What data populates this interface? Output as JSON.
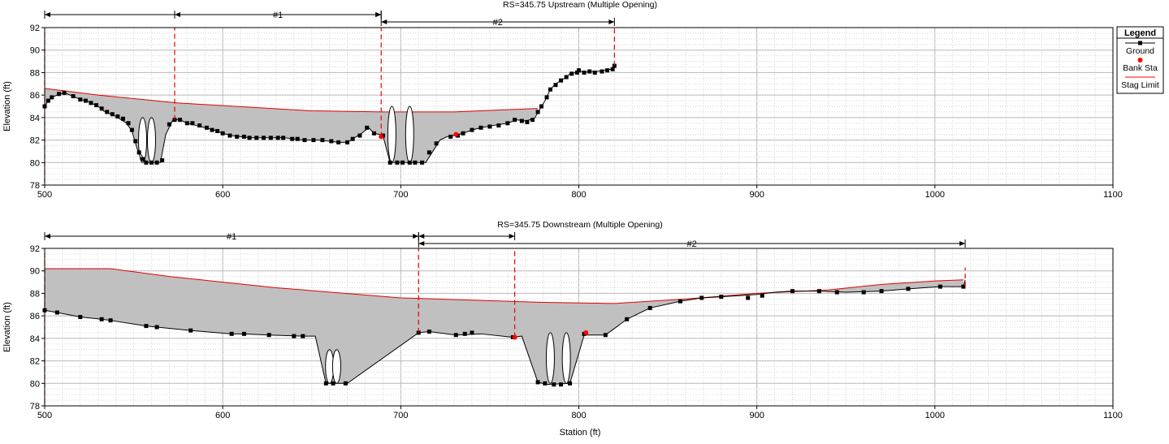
{
  "legend": {
    "title": "Legend",
    "items": [
      {
        "label": "Ground",
        "color": "#000000",
        "marker": "square-line"
      },
      {
        "label": "Bank Sta",
        "color": "#ff0000",
        "marker": "diamond"
      },
      {
        "label": "Stag Limit",
        "color": "#ff0000",
        "marker": "line"
      }
    ]
  },
  "chart_data": [
    {
      "type": "area",
      "title": "RS=345.75  Upstream  (Multiple Opening)",
      "xlabel": "",
      "ylabel": "Elevation (ft)",
      "xlim": [
        500,
        1100
      ],
      "ylim": [
        78,
        92
      ],
      "xticks": [
        "500",
        "600",
        "700",
        "800",
        "900",
        "1000",
        "1100"
      ],
      "yticks": [
        "78",
        "80",
        "82",
        "84",
        "86",
        "88",
        "90",
        "92"
      ],
      "grid": true,
      "ground": [
        [
          500,
          85
        ],
        [
          502,
          85.5
        ],
        [
          504,
          85.8
        ],
        [
          507,
          86
        ],
        [
          511,
          86.2
        ],
        [
          516,
          85.9
        ],
        [
          520,
          85.6
        ],
        [
          523,
          85.5
        ],
        [
          526,
          85.3
        ],
        [
          530,
          85
        ],
        [
          533,
          84.6
        ],
        [
          537,
          84.3
        ],
        [
          540,
          84.1
        ],
        [
          543,
          83.8
        ],
        [
          546,
          83.5
        ],
        [
          549,
          82.8
        ],
        [
          552,
          81.2
        ],
        [
          555,
          80.5
        ],
        [
          557,
          80
        ],
        [
          565,
          80
        ],
        [
          568,
          82.5
        ],
        [
          572,
          83.8
        ],
        [
          576,
          83.8
        ],
        [
          580,
          83.5
        ],
        [
          585,
          83.3
        ],
        [
          590,
          83.1
        ],
        [
          595,
          82.9
        ],
        [
          600,
          82.6
        ],
        [
          605,
          82.4
        ],
        [
          610,
          82.3
        ],
        [
          615,
          82.2
        ],
        [
          620,
          82.2
        ],
        [
          625,
          82.2
        ],
        [
          630,
          82.2
        ],
        [
          635,
          82.2
        ],
        [
          640,
          82.1
        ],
        [
          645,
          82
        ],
        [
          650,
          82
        ],
        [
          655,
          82
        ],
        [
          660,
          81.9
        ],
        [
          665,
          81.8
        ],
        [
          670,
          81.8
        ],
        [
          674,
          82.2
        ],
        [
          678,
          82.6
        ],
        [
          682,
          83.1
        ],
        [
          685,
          82.6
        ],
        [
          688,
          82.5
        ],
        [
          690,
          82.4
        ],
        [
          694,
          80
        ],
        [
          701,
          80
        ],
        [
          708,
          80
        ],
        [
          714,
          80
        ],
        [
          718,
          81
        ],
        [
          722,
          82
        ],
        [
          726,
          82.3
        ],
        [
          730,
          82.4
        ],
        [
          735,
          82.6
        ],
        [
          740,
          82.9
        ],
        [
          745,
          83.1
        ],
        [
          752,
          83.3
        ],
        [
          760,
          83.5
        ],
        [
          765,
          83.8
        ],
        [
          770,
          83.7
        ],
        [
          775,
          83.9
        ],
        [
          778,
          84.7
        ],
        [
          781,
          85.5
        ],
        [
          784,
          86.5
        ],
        [
          787,
          87
        ],
        [
          790,
          87.3
        ],
        [
          793,
          87.6
        ],
        [
          795,
          87.9
        ],
        [
          798,
          88
        ],
        [
          800,
          88.2
        ],
        [
          803,
          88
        ],
        [
          806,
          88.1
        ],
        [
          810,
          88.1
        ],
        [
          814,
          88.2
        ],
        [
          818,
          88.3
        ],
        [
          820,
          88.6
        ]
      ],
      "ground_markers": [
        [
          500,
          85
        ],
        [
          502,
          85.5
        ],
        [
          504,
          85.8
        ],
        [
          508,
          86.1
        ],
        [
          511,
          86.2
        ],
        [
          516,
          85.9
        ],
        [
          520,
          85.6
        ],
        [
          523,
          85.5
        ],
        [
          526,
          85.3
        ],
        [
          529,
          85.1
        ],
        [
          532,
          84.8
        ],
        [
          535,
          84.5
        ],
        [
          538,
          84.3
        ],
        [
          541,
          84.1
        ],
        [
          544,
          83.9
        ],
        [
          547,
          83.5
        ],
        [
          549,
          82.9
        ],
        [
          551,
          81.9
        ],
        [
          553,
          80.9
        ],
        [
          555,
          80.3
        ],
        [
          557,
          80
        ],
        [
          560,
          80
        ],
        [
          563,
          80
        ],
        [
          566,
          80.2
        ],
        [
          570,
          83.4
        ],
        [
          573,
          83.8
        ],
        [
          576,
          83.8
        ],
        [
          580,
          83.5
        ],
        [
          583,
          83.5
        ],
        [
          587,
          83.3
        ],
        [
          591,
          83.1
        ],
        [
          594,
          82.9
        ],
        [
          597,
          82.8
        ],
        [
          600,
          82.6
        ],
        [
          604,
          82.4
        ],
        [
          608,
          82.3
        ],
        [
          612,
          82.3
        ],
        [
          615,
          82.2
        ],
        [
          619,
          82.2
        ],
        [
          623,
          82.2
        ],
        [
          627,
          82.2
        ],
        [
          631,
          82.2
        ],
        [
          634,
          82.2
        ],
        [
          639,
          82.1
        ],
        [
          642,
          82.1
        ],
        [
          646,
          82
        ],
        [
          651,
          82
        ],
        [
          656,
          82
        ],
        [
          661,
          81.9
        ],
        [
          665,
          81.8
        ],
        [
          670,
          81.8
        ],
        [
          673,
          82.1
        ],
        [
          677,
          82.4
        ],
        [
          681,
          83.1
        ],
        [
          685,
          82.6
        ],
        [
          690,
          82.4
        ],
        [
          694,
          80
        ],
        [
          698,
          80
        ],
        [
          701,
          80
        ],
        [
          705,
          80
        ],
        [
          708,
          80
        ],
        [
          712,
          80
        ],
        [
          716,
          80.9
        ],
        [
          720,
          81.7
        ],
        [
          728,
          82.3
        ],
        [
          732,
          82.4
        ],
        [
          735,
          82.6
        ],
        [
          740,
          82.9
        ],
        [
          745,
          83.1
        ],
        [
          750,
          83.2
        ],
        [
          755,
          83.3
        ],
        [
          760,
          83.5
        ],
        [
          764,
          83.8
        ],
        [
          768,
          83.7
        ],
        [
          771,
          83.6
        ],
        [
          774,
          83.8
        ],
        [
          777,
          84.5
        ],
        [
          779,
          85
        ],
        [
          782,
          85.8
        ],
        [
          784,
          86.5
        ],
        [
          787,
          86.9
        ],
        [
          790,
          87.3
        ],
        [
          793,
          87.6
        ],
        [
          796,
          87.9
        ],
        [
          799,
          88
        ],
        [
          800,
          88.2
        ],
        [
          803,
          88
        ],
        [
          806,
          88.1
        ],
        [
          809,
          88
        ],
        [
          813,
          88.1
        ],
        [
          816,
          88.2
        ],
        [
          819,
          88.3
        ],
        [
          820,
          88.6
        ]
      ],
      "fill_top": [
        [
          500,
          86.6
        ],
        [
          530,
          86
        ],
        [
          575,
          85.3
        ],
        [
          650,
          84.6
        ],
        [
          690,
          84.5
        ],
        [
          730,
          84.5
        ],
        [
          775,
          84.8
        ],
        [
          777,
          84.8
        ]
      ],
      "piers": [
        [
          555,
          80,
          84
        ],
        [
          560,
          80,
          84
        ],
        [
          695,
          80,
          85
        ],
        [
          705,
          80,
          85
        ]
      ],
      "bank_stations": [
        [
          689,
          82.3
        ],
        [
          731,
          82.5
        ]
      ],
      "stag_limits": [
        [
          500,
          78.2,
          92
        ],
        [
          573,
          83.8,
          92
        ],
        [
          689,
          82.3,
          92
        ],
        [
          820,
          88.6,
          92
        ]
      ],
      "openings": [
        {
          "label": "#1",
          "x1": 573,
          "x2": 689
        },
        {
          "label": "#2",
          "x1": 689,
          "x2": 820
        }
      ],
      "overall_span": [
        500,
        689
      ]
    },
    {
      "type": "area",
      "title": "RS=345.75  Downstream  (Multiple Opening)",
      "xlabel": "Station (ft)",
      "ylabel": "Elevation (ft)",
      "xlim": [
        500,
        1100
      ],
      "ylim": [
        78,
        92
      ],
      "xticks": [
        "500",
        "600",
        "700",
        "800",
        "900",
        "1000",
        "1100"
      ],
      "yticks": [
        "78",
        "80",
        "82",
        "84",
        "86",
        "88",
        "90",
        "92"
      ],
      "grid": true,
      "ground": [
        [
          500,
          86.5
        ],
        [
          507,
          86.3
        ],
        [
          520,
          85.9
        ],
        [
          532,
          85.7
        ],
        [
          537,
          85.6
        ],
        [
          557,
          85.1
        ],
        [
          563,
          85
        ],
        [
          582,
          84.7
        ],
        [
          605,
          84.4
        ],
        [
          612,
          84.4
        ],
        [
          626,
          84.3
        ],
        [
          645,
          84.2
        ],
        [
          652,
          84.2
        ],
        [
          658,
          80
        ],
        [
          665,
          80
        ],
        [
          670,
          80
        ],
        [
          710,
          84.5
        ],
        [
          716,
          84.6
        ],
        [
          731,
          84.3
        ],
        [
          745,
          84.4
        ],
        [
          763,
          84.1
        ],
        [
          768,
          84.2
        ],
        [
          777,
          80.1
        ],
        [
          782,
          79.9
        ],
        [
          795,
          80
        ],
        [
          803,
          84.3
        ],
        [
          815,
          84.3
        ],
        [
          827,
          85.7
        ],
        [
          840,
          86.7
        ],
        [
          857,
          87.3
        ],
        [
          869,
          87.6
        ],
        [
          880,
          87.7
        ],
        [
          890,
          87.8
        ],
        [
          900,
          87.9
        ],
        [
          910,
          88.1
        ],
        [
          920,
          88.2
        ],
        [
          935,
          88.2
        ],
        [
          950,
          88.1
        ],
        [
          970,
          88.2
        ],
        [
          985,
          88.4
        ],
        [
          1003,
          88.6
        ],
        [
          1016,
          88.6
        ],
        [
          1017,
          89.2
        ]
      ],
      "ground_markers": [
        [
          500,
          86.5
        ],
        [
          507,
          86.3
        ],
        [
          520,
          85.9
        ],
        [
          532,
          85.7
        ],
        [
          537,
          85.6
        ],
        [
          557,
          85.1
        ],
        [
          563,
          85
        ],
        [
          582,
          84.7
        ],
        [
          605,
          84.4
        ],
        [
          612,
          84.4
        ],
        [
          626,
          84.3
        ],
        [
          640,
          84.2
        ],
        [
          645,
          84.2
        ],
        [
          658,
          80
        ],
        [
          662,
          80
        ],
        [
          669,
          80
        ],
        [
          710,
          84.5
        ],
        [
          716,
          84.6
        ],
        [
          731,
          84.3
        ],
        [
          736,
          84.4
        ],
        [
          740,
          84.5
        ],
        [
          763,
          84.1
        ],
        [
          777,
          80.1
        ],
        [
          781,
          80
        ],
        [
          786,
          79.9
        ],
        [
          790,
          79.9
        ],
        [
          795,
          80
        ],
        [
          803,
          84.4
        ],
        [
          815,
          84.3
        ],
        [
          827,
          85.7
        ],
        [
          840,
          86.7
        ],
        [
          857,
          87.3
        ],
        [
          869,
          87.6
        ],
        [
          880,
          87.7
        ],
        [
          895,
          87.6
        ],
        [
          903,
          87.8
        ],
        [
          920,
          88.2
        ],
        [
          935,
          88.2
        ],
        [
          945,
          88.1
        ],
        [
          960,
          88.1
        ],
        [
          970,
          88.2
        ],
        [
          985,
          88.4
        ],
        [
          1003,
          88.6
        ],
        [
          1016,
          88.6
        ]
      ],
      "fill_top": [
        [
          500,
          90.2
        ],
        [
          537,
          90.2
        ],
        [
          570,
          89.5
        ],
        [
          630,
          88.5
        ],
        [
          700,
          87.6
        ],
        [
          780,
          87.2
        ],
        [
          820,
          87.1
        ],
        [
          860,
          87.5
        ],
        [
          900,
          88
        ],
        [
          940,
          88.3
        ],
        [
          970,
          88.8
        ],
        [
          1000,
          89.1
        ],
        [
          1016,
          89.2
        ]
      ],
      "piers": [
        [
          660,
          80,
          83
        ],
        [
          664,
          80,
          83
        ],
        [
          784,
          80,
          84.5
        ],
        [
          793,
          80,
          84.5
        ]
      ],
      "bank_stations": [
        [
          764,
          84.1
        ],
        [
          804,
          84.5
        ]
      ],
      "stag_limits": [
        [
          500,
          78.2,
          92
        ],
        [
          710,
          84.5,
          92
        ],
        [
          764,
          84.1,
          92
        ],
        [
          1017,
          88.6,
          90.3
        ]
      ],
      "openings": [
        {
          "label": "#1",
          "x1": 500,
          "x2": 710
        },
        {
          "label": "#2",
          "x1": 710,
          "x2": 1017
        }
      ],
      "overall_span": [
        710,
        764
      ]
    }
  ]
}
